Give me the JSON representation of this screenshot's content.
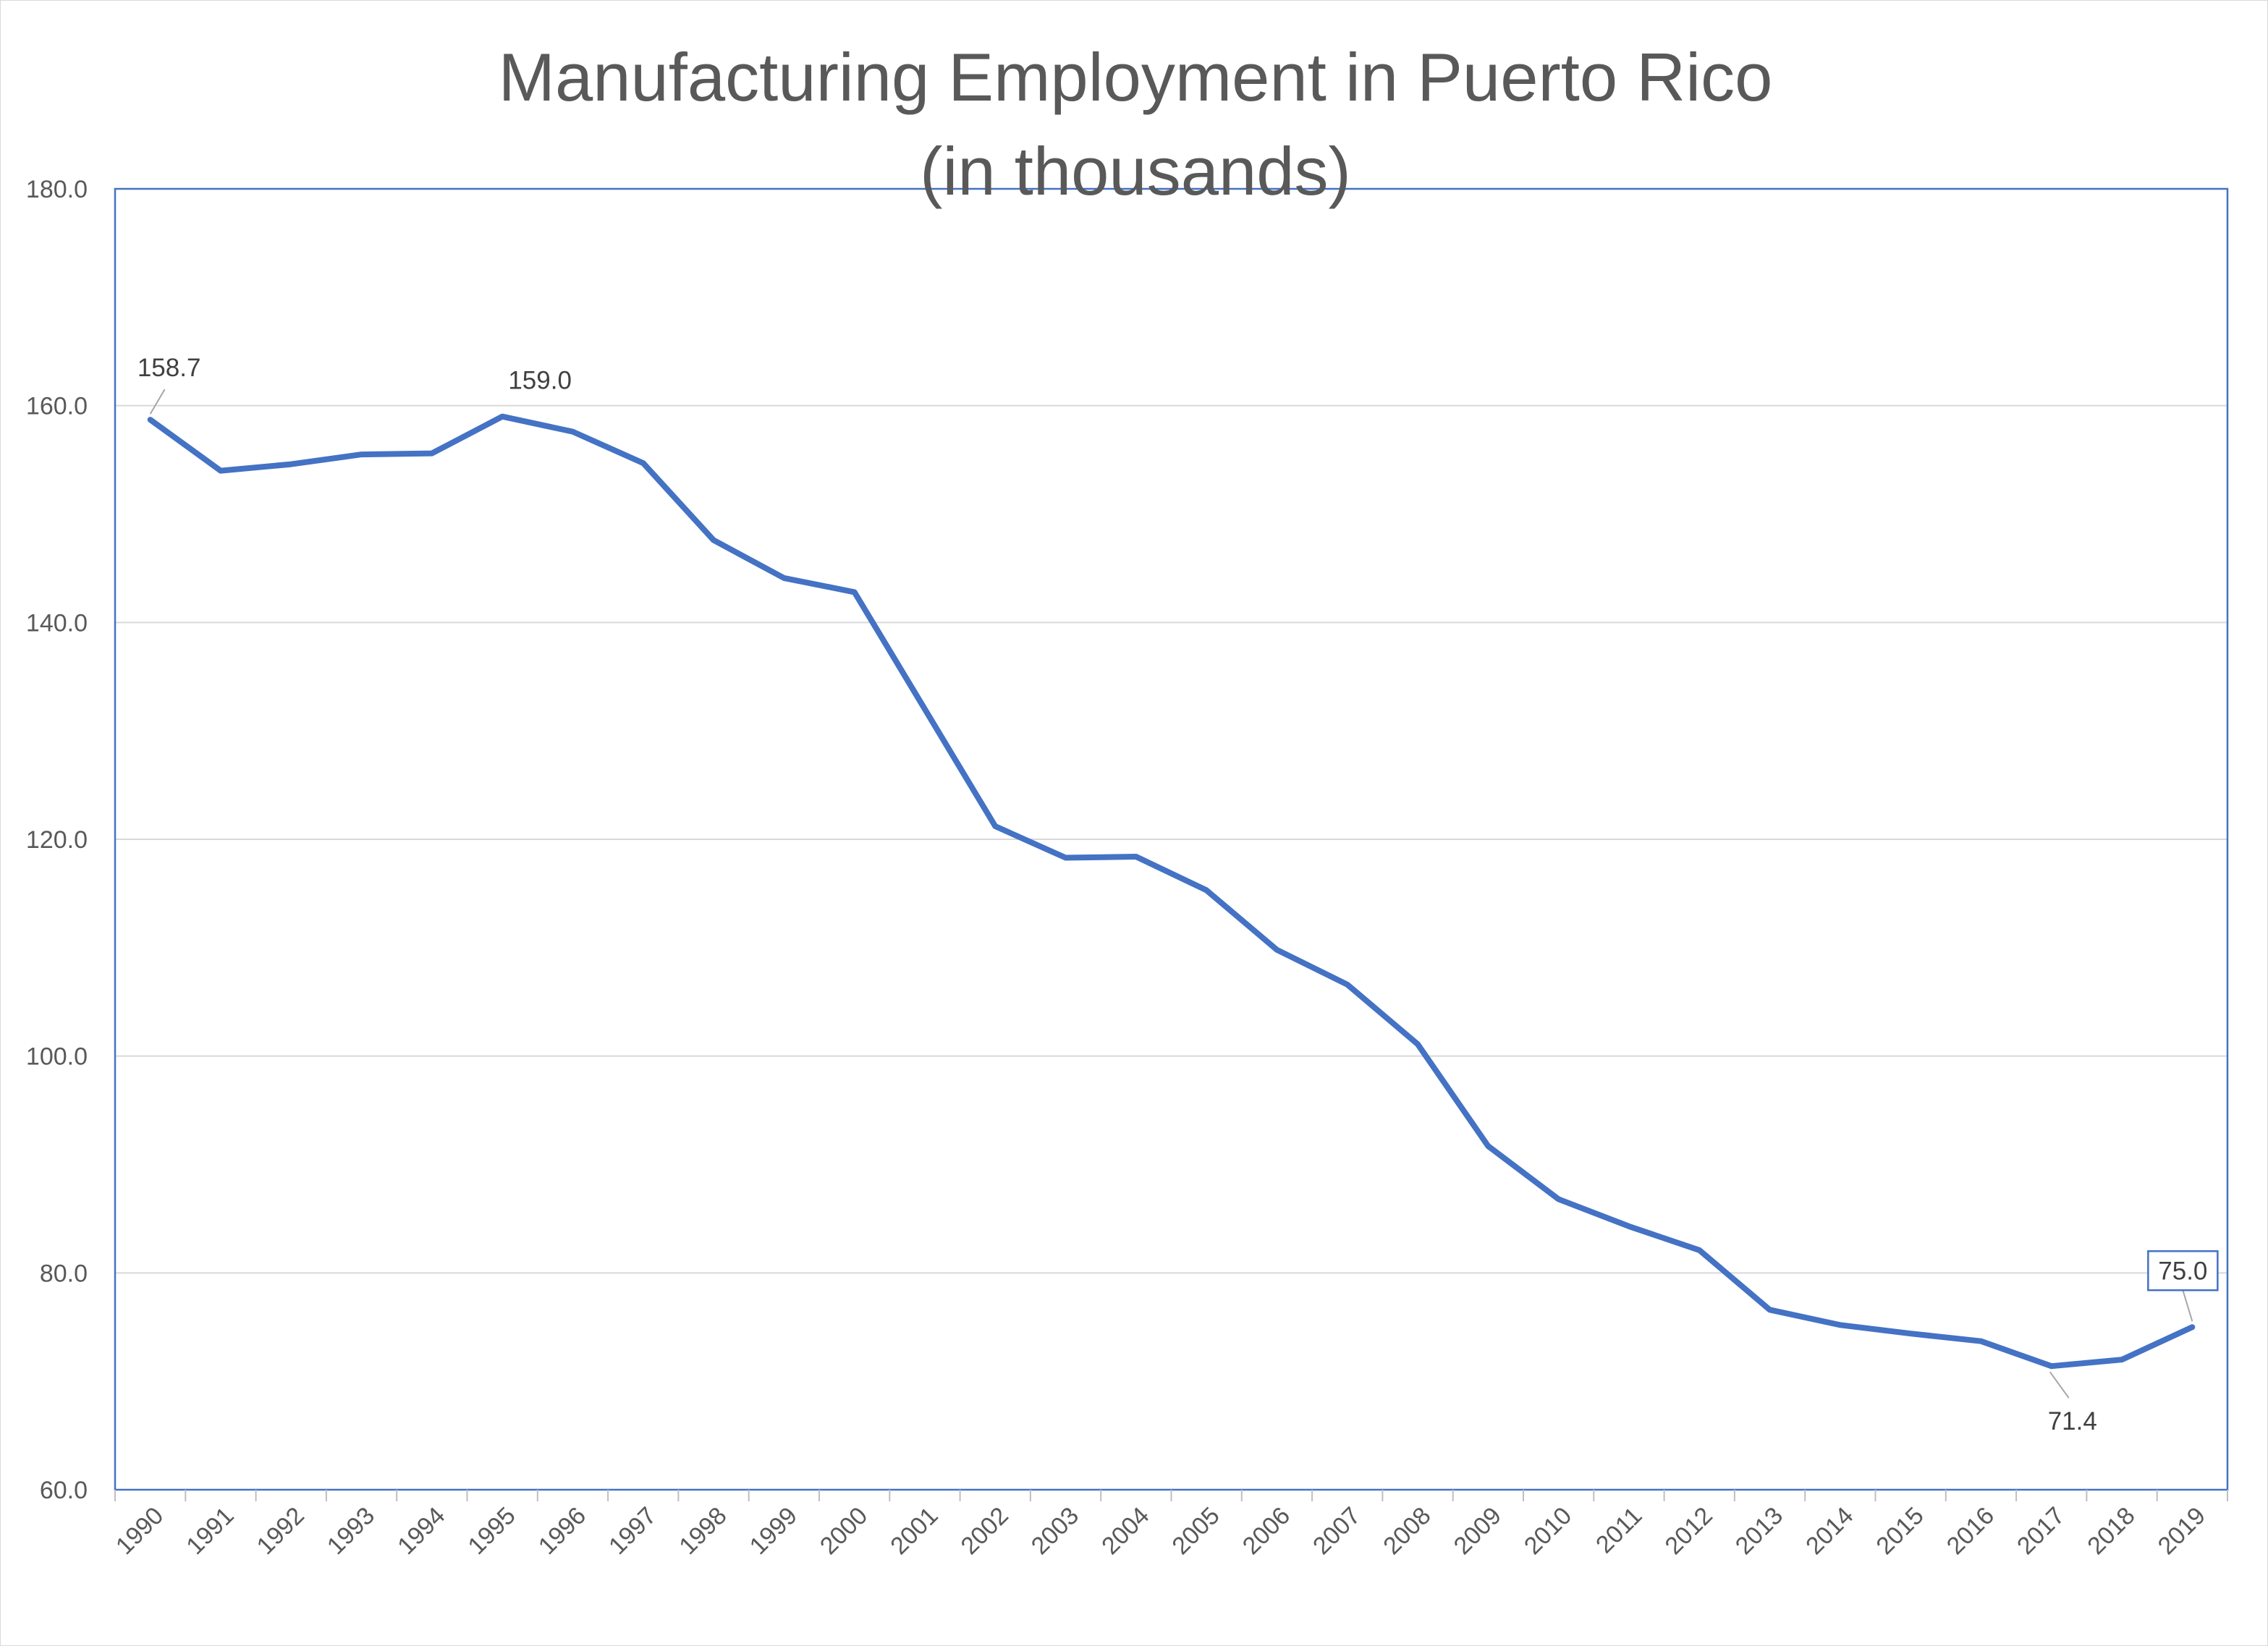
{
  "chart_data": {
    "type": "line",
    "title": "Manufacturing Employment in Puerto Rico",
    "subtitle": "(in thousands)",
    "xlabel": "",
    "ylabel": "",
    "ylim": [
      60,
      180
    ],
    "ytick_step": 20,
    "grid": true,
    "legend": "none",
    "color": "#4472c4",
    "categories": [
      "1990",
      "1991",
      "1992",
      "1993",
      "1994",
      "1995",
      "1996",
      "1997",
      "1998",
      "1999",
      "2000",
      "2001",
      "2002",
      "2003",
      "2004",
      "2005",
      "2006",
      "2007",
      "2008",
      "2009",
      "2010",
      "2011",
      "2012",
      "2013",
      "2014",
      "2015",
      "2016",
      "2017",
      "2018",
      "2019"
    ],
    "series": [
      {
        "name": "Manufacturing Employment",
        "values": [
          158.7,
          154.0,
          154.6,
          155.5,
          155.6,
          159.0,
          157.6,
          154.7,
          147.6,
          144.1,
          142.8,
          132.0,
          121.2,
          118.3,
          118.4,
          115.3,
          109.8,
          106.6,
          101.1,
          91.7,
          86.8,
          84.3,
          82.1,
          76.6,
          75.2,
          74.4,
          73.7,
          71.4,
          72.0,
          75.0
        ]
      }
    ],
    "data_labels": [
      {
        "index": 0,
        "text": "158.7",
        "position": "above"
      },
      {
        "index": 5,
        "text": "159.0",
        "position": "above"
      },
      {
        "index": 27,
        "text": "71.4",
        "position": "below"
      },
      {
        "index": 29,
        "text": "75.0",
        "position": "above",
        "boxed": true
      }
    ]
  }
}
